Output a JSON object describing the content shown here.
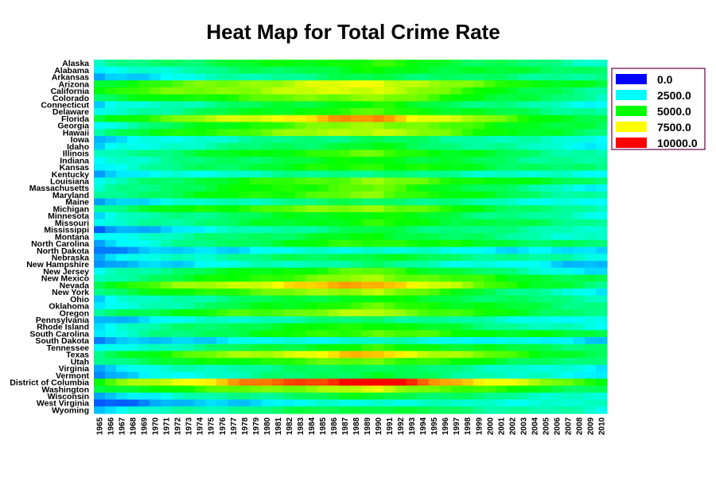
{
  "chart_data": {
    "type": "heatmap",
    "title": "Heat Map for Total Crime Rate",
    "rows": [
      "Alaska",
      "Alabama",
      "Arkansas",
      "Arizona",
      "California",
      "Colorado",
      "Connecticut",
      "Delaware",
      "Florida",
      "Georgia",
      "Hawaii",
      "Iowa",
      "Idaho",
      "Illinois",
      "Indiana",
      "Kansas",
      "Kentucky",
      "Louisiana",
      "Massachusetts",
      "Maryland",
      "Maine",
      "Michigan",
      "Minnesota",
      "Missouri",
      "Mississippi",
      "Montana",
      "North Carolina",
      "North Dakota",
      "Nebraska",
      "New Hampshire",
      "New Jersey",
      "New Mexico",
      "Nevada",
      "New York",
      "Ohio",
      "Oklahoma",
      "Oregon",
      "Pennsylvania",
      "Rhode Island",
      "South Carolina",
      "South Dakota",
      "Tennessee",
      "Texas",
      "Utah",
      "Virginia",
      "Vermont",
      "District of Columbia",
      "Washington",
      "Wisconsin",
      "West Virginia",
      "Wyoming"
    ],
    "columns": [
      "1965",
      "1966",
      "1967",
      "1968",
      "1969",
      "1970",
      "1971",
      "1972",
      "1973",
      "1974",
      "1975",
      "1976",
      "1977",
      "1978",
      "1979",
      "1980",
      "1981",
      "1982",
      "1983",
      "1984",
      "1985",
      "1986",
      "1987",
      "1988",
      "1989",
      "1990",
      "1991",
      "1992",
      "1993",
      "1994",
      "1995",
      "1996",
      "1997",
      "1998",
      "1999",
      "2000",
      "2001",
      "2002",
      "2003",
      "2004",
      "2005",
      "2006",
      "2007",
      "2008",
      "2009",
      "2010"
    ],
    "row_levels": [
      {
        "base": 3100,
        "peak": 5400,
        "end": 3100
      },
      {
        "base": 2200,
        "peak": 4900,
        "end": 4100
      },
      {
        "base": 1500,
        "peak": 4300,
        "end": 3500
      },
      {
        "base": 4500,
        "peak": 7500,
        "end": 4300
      },
      {
        "base": 5100,
        "peak": 7300,
        "end": 3300
      },
      {
        "base": 4000,
        "peak": 6500,
        "end": 3300
      },
      {
        "base": 2000,
        "peak": 5200,
        "end": 2600
      },
      {
        "base": 2500,
        "peak": 5700,
        "end": 3400
      },
      {
        "base": 4300,
        "peak": 8700,
        "end": 4100
      },
      {
        "base": 2500,
        "peak": 6700,
        "end": 4000
      },
      {
        "base": 3600,
        "peak": 7100,
        "end": 3800
      },
      {
        "base": 1800,
        "peak": 4200,
        "end": 2700
      },
      {
        "base": 2000,
        "peak": 4700,
        "end": 2500
      },
      {
        "base": 2900,
        "peak": 5900,
        "end": 3200
      },
      {
        "base": 2600,
        "peak": 5000,
        "end": 3300
      },
      {
        "base": 2400,
        "peak": 5500,
        "end": 3600
      },
      {
        "base": 1800,
        "peak": 3900,
        "end": 2600
      },
      {
        "base": 2600,
        "peak": 6400,
        "end": 4000
      },
      {
        "base": 2900,
        "peak": 6000,
        "end": 2500
      },
      {
        "base": 3200,
        "peak": 6200,
        "end": 3200
      },
      {
        "base": 1700,
        "peak": 4200,
        "end": 2400
      },
      {
        "base": 3500,
        "peak": 6600,
        "end": 3000
      },
      {
        "base": 2400,
        "peak": 5200,
        "end": 2800
      },
      {
        "base": 2500,
        "peak": 5300,
        "end": 3600
      },
      {
        "base": 900,
        "peak": 4300,
        "end": 3100
      },
      {
        "base": 2300,
        "peak": 4900,
        "end": 2800
      },
      {
        "base": 1800,
        "peak": 5600,
        "end": 3800
      },
      {
        "base": 1200,
        "peak": 3100,
        "end": 2000
      },
      {
        "base": 1900,
        "peak": 4600,
        "end": 3000
      },
      {
        "base": 1200,
        "peak": 3800,
        "end": 1800
      },
      {
        "base": 2600,
        "peak": 5900,
        "end": 2200
      },
      {
        "base": 2900,
        "peak": 6600,
        "end": 4000
      },
      {
        "base": 4500,
        "peak": 8600,
        "end": 3600
      },
      {
        "base": 3700,
        "peak": 6900,
        "end": 2200
      },
      {
        "base": 2200,
        "peak": 5000,
        "end": 3400
      },
      {
        "base": 2000,
        "peak": 5800,
        "end": 3700
      },
      {
        "base": 3500,
        "peak": 6800,
        "end": 3700
      },
      {
        "base": 1600,
        "peak": 4000,
        "end": 2400
      },
      {
        "base": 2500,
        "peak": 5400,
        "end": 2600
      },
      {
        "base": 2300,
        "peak": 5900,
        "end": 4300
      },
      {
        "base": 1400,
        "peak": 3100,
        "end": 2200
      },
      {
        "base": 2100,
        "peak": 5300,
        "end": 3900
      },
      {
        "base": 3700,
        "peak": 8200,
        "end": 4100
      },
      {
        "base": 3500,
        "peak": 6100,
        "end": 3500
      },
      {
        "base": 2000,
        "peak": 4400,
        "end": 2400
      },
      {
        "base": 1300,
        "peak": 4600,
        "end": 2300
      },
      {
        "base": 5200,
        "peak": 10400,
        "end": 5300
      },
      {
        "base": 4000,
        "peak": 7000,
        "end": 4000
      },
      {
        "base": 1700,
        "peak": 4700,
        "end": 2800
      },
      {
        "base": 800,
        "peak": 3000,
        "end": 2900
      },
      {
        "base": 2200,
        "peak": 4600,
        "end": 2900
      }
    ],
    "scale": [
      {
        "value": 0,
        "label": "0.0",
        "color": "#0000ff"
      },
      {
        "value": 2500,
        "label": "2500.0",
        "color": "#00ffff"
      },
      {
        "value": 5000,
        "label": "5000.0",
        "color": "#00ff00"
      },
      {
        "value": 7500,
        "label": "7500.0",
        "color": "#ffff00"
      },
      {
        "value": 10000,
        "label": "10000.0",
        "color": "#ff0000"
      }
    ],
    "legend_position": "right",
    "grid": false
  }
}
